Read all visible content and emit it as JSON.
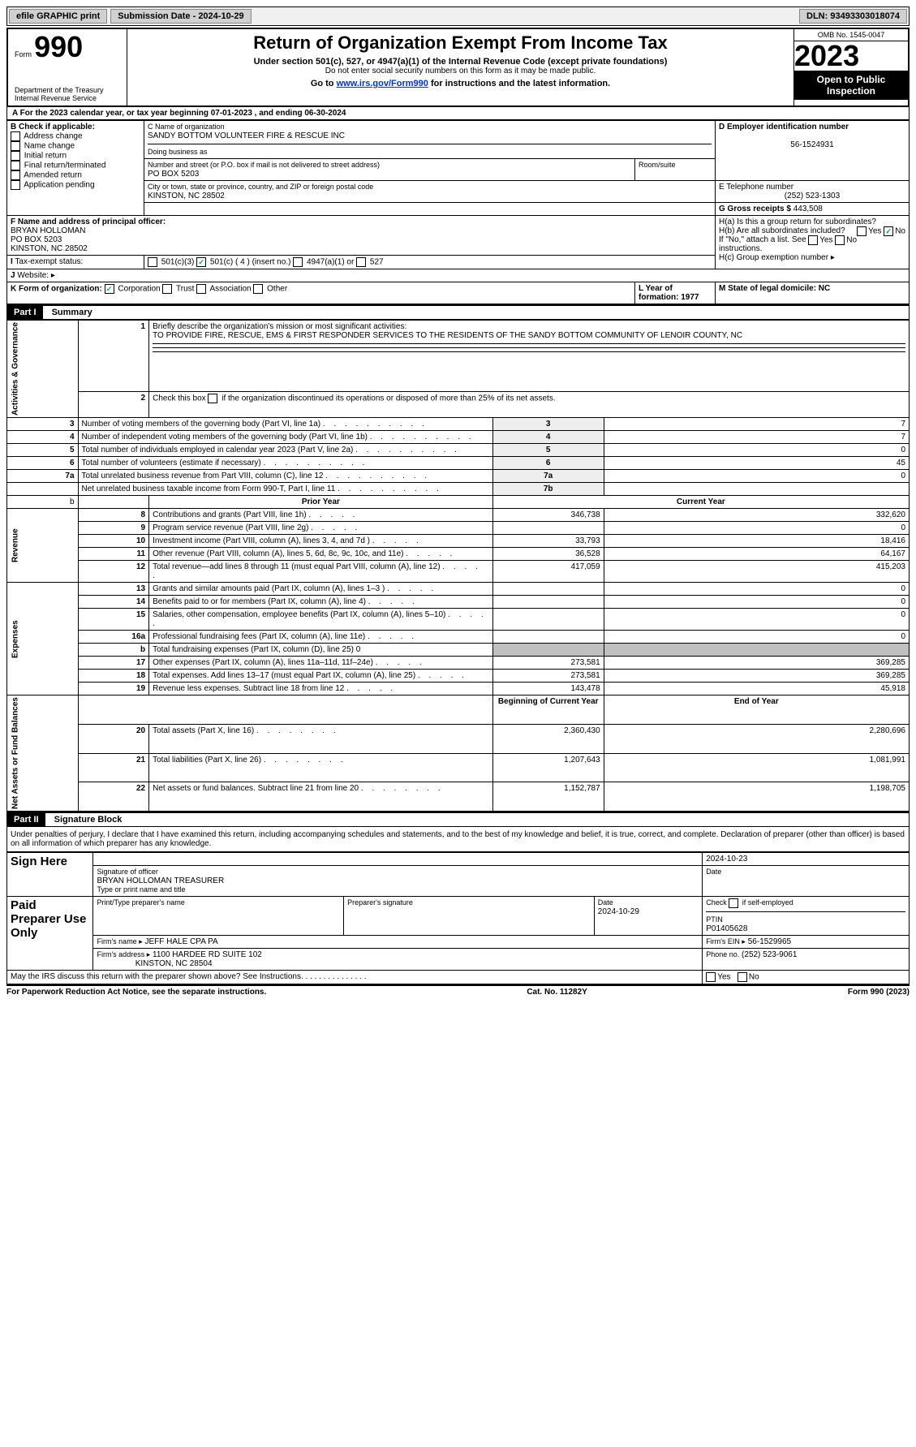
{
  "topbar": {
    "efile": "efile GRAPHIC print",
    "submission_label": "Submission Date - 2024-10-29",
    "dln_label": "DLN: 93493303018074"
  },
  "header": {
    "form_word": "Form",
    "form_number": "990",
    "dept": "Department of the Treasury\nInternal Revenue Service",
    "title": "Return of Organization Exempt From Income Tax",
    "subtitle": "Under section 501(c), 527, or 4947(a)(1) of the Internal Revenue Code (except private foundations)",
    "note1": "Do not enter social security numbers on this form as it may be made public.",
    "note2_pre": "Go to ",
    "note2_link": "www.irs.gov/Form990",
    "note2_post": " for instructions and the latest information.",
    "omb": "OMB No. 1545-0047",
    "year": "2023",
    "public": "Open to Public Inspection"
  },
  "line_a": "For the 2023 calendar year, or tax year beginning 07-01-2023    , and ending 06-30-2024",
  "box_b": {
    "label": "B Check if applicable:",
    "items": [
      "Address change",
      "Name change",
      "Initial return",
      "Final return/terminated",
      "Amended return",
      "Application pending"
    ]
  },
  "box_c": {
    "name_label": "C Name of organization",
    "name": "SANDY BOTTOM VOLUNTEER FIRE & RESCUE INC",
    "dba_label": "Doing business as",
    "addr_label": "Number and street (or P.O. box if mail is not delivered to street address)",
    "addr": "PO BOX 5203",
    "room_label": "Room/suite",
    "city_label": "City or town, state or province, country, and ZIP or foreign postal code",
    "city": "KINSTON, NC  28502"
  },
  "box_d": {
    "label": "D Employer identification number",
    "value": "56-1524931"
  },
  "box_e": {
    "label": "E Telephone number",
    "value": "(252) 523-1303"
  },
  "box_g": {
    "label": "G Gross receipts $",
    "value": "443,508"
  },
  "box_f": {
    "label": "F  Name and address of principal officer:",
    "name": "BRYAN HOLLOMAN",
    "addr1": "PO BOX 5203",
    "addr2": "KINSTON, NC  28502"
  },
  "box_h": {
    "a": "H(a)  Is this a group return for subordinates?",
    "b": "H(b)  Are all subordinates included?",
    "b_note": "If \"No,\" attach a list. See instructions.",
    "c": "H(c)  Group exemption number ▸",
    "yes": "Yes",
    "no": "No"
  },
  "box_i": {
    "label": "Tax-exempt status:",
    "opts": [
      "501(c)(3)",
      "501(c) ( 4 ) (insert no.)",
      "4947(a)(1) or",
      "527"
    ]
  },
  "box_j": {
    "label": "Website: ▸"
  },
  "box_k": {
    "label": "K Form of organization:",
    "opts": [
      "Corporation",
      "Trust",
      "Association",
      "Other"
    ]
  },
  "box_l": {
    "label": "L Year of formation: 1977"
  },
  "box_m": {
    "label": "M State of legal domicile: NC"
  },
  "part1": {
    "tag": "Part I",
    "title": "Summary",
    "q1_label": "Briefly describe the organization's mission or most significant activities:",
    "q1_text": "TO PROVIDE FIRE, RESCUE, EMS & FIRST RESPONDER SERVICES TO THE RESIDENTS OF THE SANDY BOTTOM COMMUNITY OF LENOIR COUNTY, NC",
    "q2": "Check this box      if the organization discontinued its operations or disposed of more than 25% of its net assets.",
    "sideA": "Activities & Governance",
    "sideR": "Revenue",
    "sideE": "Expenses",
    "sideN": "Net Assets or Fund Balances",
    "rows_gov": [
      {
        "n": "3",
        "t": "Number of voting members of the governing body (Part VI, line 1a)",
        "k": "3",
        "v": "7"
      },
      {
        "n": "4",
        "t": "Number of independent voting members of the governing body (Part VI, line 1b)",
        "k": "4",
        "v": "7"
      },
      {
        "n": "5",
        "t": "Total number of individuals employed in calendar year 2023 (Part V, line 2a)",
        "k": "5",
        "v": "0"
      },
      {
        "n": "6",
        "t": "Total number of volunteers (estimate if necessary)",
        "k": "6",
        "v": "45"
      },
      {
        "n": "7a",
        "t": "Total unrelated business revenue from Part VIII, column (C), line 12",
        "k": "7a",
        "v": "0"
      },
      {
        "n": "",
        "t": "Net unrelated business taxable income from Form 990-T, Part I, line 11",
        "k": "7b",
        "v": ""
      }
    ],
    "col_prior": "Prior Year",
    "col_current": "Current Year",
    "rows_rev": [
      {
        "n": "8",
        "t": "Contributions and grants (Part VIII, line 1h)",
        "p": "346,738",
        "c": "332,620"
      },
      {
        "n": "9",
        "t": "Program service revenue (Part VIII, line 2g)",
        "p": "",
        "c": "0"
      },
      {
        "n": "10",
        "t": "Investment income (Part VIII, column (A), lines 3, 4, and 7d )",
        "p": "33,793",
        "c": "18,416"
      },
      {
        "n": "11",
        "t": "Other revenue (Part VIII, column (A), lines 5, 6d, 8c, 9c, 10c, and 11e)",
        "p": "36,528",
        "c": "64,167"
      },
      {
        "n": "12",
        "t": "Total revenue—add lines 8 through 11 (must equal Part VIII, column (A), line 12)",
        "p": "417,059",
        "c": "415,203"
      }
    ],
    "rows_exp": [
      {
        "n": "13",
        "t": "Grants and similar amounts paid (Part IX, column (A), lines 1–3 )",
        "p": "",
        "c": "0"
      },
      {
        "n": "14",
        "t": "Benefits paid to or for members (Part IX, column (A), line 4)",
        "p": "",
        "c": "0"
      },
      {
        "n": "15",
        "t": "Salaries, other compensation, employee benefits (Part IX, column (A), lines 5–10)",
        "p": "",
        "c": "0"
      },
      {
        "n": "16a",
        "t": "Professional fundraising fees (Part IX, column (A), line 11e)",
        "p": "",
        "c": "0"
      },
      {
        "n": "b",
        "t": "Total fundraising expenses (Part IX, column (D), line 25) 0",
        "p": "SHADE",
        "c": "SHADE"
      },
      {
        "n": "17",
        "t": "Other expenses (Part IX, column (A), lines 11a–11d, 11f–24e)",
        "p": "273,581",
        "c": "369,285"
      },
      {
        "n": "18",
        "t": "Total expenses. Add lines 13–17 (must equal Part IX, column (A), line 25)",
        "p": "273,581",
        "c": "369,285"
      },
      {
        "n": "19",
        "t": "Revenue less expenses. Subtract line 18 from line 12",
        "p": "143,478",
        "c": "45,918"
      }
    ],
    "col_begin": "Beginning of Current Year",
    "col_end": "End of Year",
    "rows_net": [
      {
        "n": "20",
        "t": "Total assets (Part X, line 16)",
        "p": "2,360,430",
        "c": "2,280,696"
      },
      {
        "n": "21",
        "t": "Total liabilities (Part X, line 26)",
        "p": "1,207,643",
        "c": "1,081,991"
      },
      {
        "n": "22",
        "t": "Net assets or fund balances. Subtract line 21 from line 20",
        "p": "1,152,787",
        "c": "1,198,705"
      }
    ]
  },
  "part2": {
    "tag": "Part II",
    "title": "Signature Block",
    "decl": "Under penalties of perjury, I declare that I have examined this return, including accompanying schedules and statements, and to the best of my knowledge and belief, it is true, correct, and complete. Declaration of preparer (other than officer) is based on all information of which preparer has any knowledge.",
    "sign_here": "Sign Here",
    "sig_officer_label": "Signature of officer",
    "sig_name": "BRYAN HOLLOMAN  TREASURER",
    "sig_name_label": "Type or print name and title",
    "date_label": "Date",
    "date_value": "2024-10-23",
    "paid": "Paid Preparer Use Only",
    "prep_name_label": "Print/Type preparer's name",
    "prep_sig_label": "Preparer's signature",
    "prep_date": "2024-10-29",
    "check_if": "Check       if self-employed",
    "ptin_label": "PTIN",
    "ptin": "P01405628",
    "firm_name_label": "Firm's name   ▸",
    "firm_name": "JEFF HALE CPA PA",
    "firm_ein_label": "Firm's EIN ▸",
    "firm_ein": "56-1529965",
    "firm_addr_label": "Firm's address ▸",
    "firm_addr1": "1100 HARDEE RD SUITE 102",
    "firm_addr2": "KINSTON, NC  28504",
    "phone_label": "Phone no.",
    "phone": "(252) 523-9061",
    "discuss": "May the IRS discuss this return with the preparer shown above? See Instructions."
  },
  "footer": {
    "left": "For Paperwork Reduction Act Notice, see the separate instructions.",
    "mid": "Cat. No. 11282Y",
    "right": "Form 990 (2023)"
  }
}
